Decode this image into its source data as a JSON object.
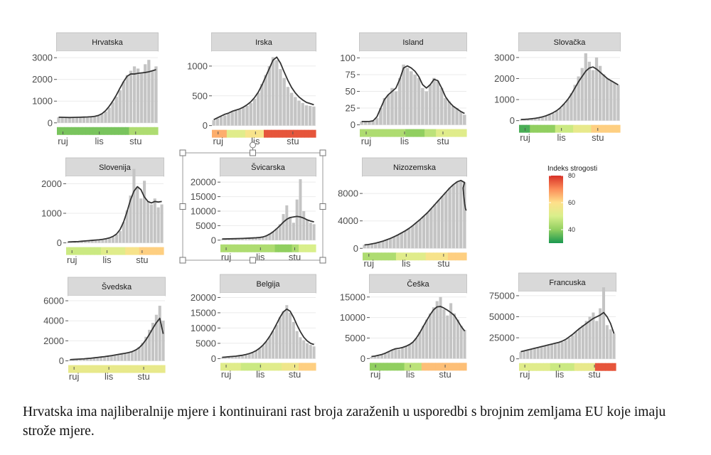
{
  "caption": "Hrvatska ima najliberalnije mjere i kontinuirani rast broja zaraženih u usporedbi s brojnim zemljama EU koje imaju strože mjere.",
  "colors": {
    "bar": "#c4c4c4",
    "line": "#333333",
    "strip": "#d9d9d9",
    "grid": "#ebebeb",
    "selection": "#9a9a9a"
  },
  "legend": {
    "title": "Indeks strogosti",
    "ticks": [
      40,
      60,
      80
    ],
    "range": [
      30,
      80
    ],
    "colors": [
      "#1a9850",
      "#91cf60",
      "#d9ef8b",
      "#fee08b",
      "#fc8d59",
      "#d73027"
    ]
  },
  "chart_data": [
    {
      "type": "bar",
      "title": "Hrvatska",
      "x": [
        "ruj",
        "lis",
        "stu"
      ],
      "yticks": [
        0,
        1000,
        2000,
        3000
      ],
      "ylim": [
        -400,
        3300
      ],
      "bars": [
        260,
        240,
        250,
        230,
        260,
        250,
        240,
        270,
        260,
        280,
        300,
        320,
        400,
        520,
        700,
        950,
        1200,
        1500,
        1900,
        2200,
        2400,
        2600,
        2500,
        2300,
        2700,
        2900,
        2400,
        2600
      ],
      "line": [
        260,
        255,
        250,
        245,
        250,
        255,
        260,
        265,
        270,
        280,
        300,
        340,
        420,
        560,
        760,
        1000,
        1280,
        1600,
        1900,
        2150,
        2250,
        2250,
        2280,
        2300,
        2320,
        2350,
        2400,
        2450
      ],
      "stringency": [
        38,
        38,
        38,
        38,
        38,
        38,
        38,
        38,
        38,
        38,
        38,
        38,
        38,
        38,
        38,
        38,
        38,
        38,
        38,
        38,
        44,
        44,
        44,
        44,
        44,
        44,
        44,
        44
      ]
    },
    {
      "type": "bar",
      "title": "Irska",
      "x": [
        "ruj",
        "lis",
        "stu"
      ],
      "yticks": [
        0,
        500,
        1000
      ],
      "ylim": [
        -100,
        1250
      ],
      "bars": [
        90,
        120,
        150,
        170,
        200,
        230,
        250,
        270,
        300,
        330,
        380,
        450,
        550,
        700,
        850,
        1000,
        1150,
        1100,
        950,
        800,
        650,
        550,
        480,
        420,
        380,
        340,
        330,
        320
      ],
      "line": [
        100,
        130,
        160,
        190,
        210,
        240,
        260,
        280,
        310,
        350,
        400,
        470,
        560,
        680,
        820,
        960,
        1100,
        1150,
        1050,
        900,
        760,
        640,
        550,
        480,
        430,
        390,
        370,
        350
      ],
      "stringency": [
        66,
        66,
        66,
        66,
        52,
        52,
        52,
        52,
        52,
        58,
        58,
        58,
        58,
        58,
        76,
        76,
        76,
        76,
        76,
        76,
        76,
        76,
        76,
        76,
        76,
        76,
        76,
        76
      ]
    },
    {
      "type": "bar",
      "title": "Island",
      "x": [
        "ruj",
        "lis",
        "stu"
      ],
      "yticks": [
        0,
        25,
        50,
        75,
        100
      ],
      "ylim": [
        -10,
        110
      ],
      "bars": [
        5,
        5,
        4,
        6,
        10,
        25,
        40,
        45,
        55,
        50,
        70,
        90,
        85,
        80,
        75,
        70,
        55,
        50,
        60,
        70,
        65,
        55,
        40,
        35,
        28,
        25,
        20,
        15
      ],
      "line": [
        5,
        5,
        5,
        6,
        12,
        25,
        38,
        45,
        50,
        55,
        68,
        85,
        88,
        85,
        80,
        72,
        60,
        55,
        60,
        68,
        66,
        55,
        42,
        34,
        28,
        24,
        20,
        17
      ],
      "stringency": [
        44,
        44,
        44,
        44,
        44,
        44,
        44,
        44,
        44,
        44,
        44,
        44,
        40,
        40,
        40,
        40,
        40,
        46,
        46,
        46,
        52,
        52,
        52,
        52,
        52,
        52,
        52,
        52
      ]
    },
    {
      "type": "bar",
      "title": "Slovačka",
      "x": [
        "ruj",
        "lis",
        "stu"
      ],
      "yticks": [
        0,
        1000,
        2000,
        3000
      ],
      "ylim": [
        -350,
        3300
      ],
      "bars": [
        40,
        50,
        60,
        80,
        100,
        130,
        170,
        220,
        280,
        350,
        450,
        600,
        800,
        1000,
        1300,
        1700,
        2100,
        2500,
        3200,
        2800,
        2400,
        3000,
        2600,
        2200,
        2000,
        1900,
        1800,
        1700
      ],
      "line": [
        50,
        60,
        70,
        90,
        110,
        140,
        180,
        230,
        300,
        380,
        480,
        620,
        800,
        1000,
        1250,
        1550,
        1850,
        2100,
        2350,
        2500,
        2550,
        2450,
        2300,
        2150,
        2000,
        1900,
        1800,
        1700
      ],
      "stringency": [
        34,
        34,
        34,
        40,
        40,
        40,
        40,
        40,
        40,
        40,
        48,
        48,
        48,
        48,
        48,
        54,
        54,
        54,
        54,
        54,
        62,
        62,
        62,
        62,
        62,
        62,
        62,
        62
      ]
    },
    {
      "type": "bar",
      "title": "Slovenija",
      "x": [
        "ruj",
        "lis",
        "stu"
      ],
      "yticks": [
        0,
        1000,
        2000
      ],
      "ylim": [
        -250,
        2250
      ],
      "bars": [
        20,
        25,
        30,
        40,
        50,
        60,
        70,
        80,
        90,
        100,
        110,
        130,
        150,
        200,
        280,
        400,
        700,
        1100,
        1600,
        2500,
        1900,
        1500,
        2100,
        1400,
        1300,
        1500,
        1200,
        1300
      ],
      "line": [
        30,
        35,
        40,
        45,
        55,
        65,
        75,
        85,
        95,
        105,
        120,
        140,
        170,
        220,
        300,
        450,
        700,
        1050,
        1450,
        1750,
        1900,
        1800,
        1550,
        1400,
        1350,
        1400,
        1380,
        1400
      ],
      "stringency": [
        48,
        48,
        48,
        48,
        48,
        48,
        48,
        48,
        48,
        48,
        52,
        52,
        52,
        52,
        52,
        52,
        52,
        58,
        58,
        58,
        58,
        62,
        62,
        62,
        62,
        62,
        62,
        62
      ]
    },
    {
      "type": "bar",
      "title": "Švicarska",
      "x": [
        "ruj",
        "lis",
        "stu"
      ],
      "yticks": [
        0,
        5000,
        10000,
        15000,
        20000
      ],
      "ylim": [
        -2500,
        22000
      ],
      "bars": [
        300,
        350,
        400,
        450,
        500,
        550,
        600,
        650,
        700,
        750,
        800,
        900,
        1200,
        1600,
        2200,
        3000,
        4000,
        5500,
        9000,
        12000,
        8000,
        6000,
        14000,
        21000,
        10000,
        7000,
        6000,
        5500
      ],
      "line": [
        400,
        420,
        450,
        480,
        520,
        560,
        600,
        650,
        700,
        760,
        820,
        920,
        1100,
        1500,
        2100,
        2900,
        3900,
        5000,
        6200,
        7200,
        7800,
        8000,
        8200,
        8000,
        7600,
        7000,
        6600,
        6300
      ],
      "stringency": [
        44,
        44,
        44,
        44,
        44,
        44,
        44,
        44,
        44,
        44,
        44,
        44,
        44,
        44,
        44,
        44,
        40,
        40,
        40,
        40,
        40,
        44,
        44,
        50,
        50,
        50,
        50,
        50
      ]
    },
    {
      "type": "area",
      "title": "Nizozemska",
      "x": [
        "ruj",
        "lis",
        "stu"
      ],
      "yticks": [
        0,
        4000,
        8000
      ],
      "ylim": [
        -800,
        10500
      ],
      "bars": [
        500,
        550,
        650,
        750,
        900,
        1050,
        1250,
        1450,
        1700,
        1950,
        2250,
        2550,
        2900,
        3300,
        3750,
        4200,
        4700,
        5200,
        5800,
        6400,
        7000,
        7600,
        8200,
        8800,
        9300,
        9700,
        9900,
        9600
      ],
      "line": [
        500,
        550,
        650,
        750,
        900,
        1050,
        1250,
        1450,
        1700,
        1950,
        2250,
        2550,
        2900,
        3300,
        3750,
        4200,
        4700,
        5200,
        5800,
        6400,
        7000,
        7600,
        8200,
        8800,
        9300,
        9700,
        9900,
        9600
      ],
      "line_tail": [
        8800,
        7500,
        6500,
        5800,
        5500
      ],
      "stringency": [
        44,
        44,
        44,
        44,
        44,
        44,
        44,
        44,
        44,
        52,
        52,
        52,
        52,
        52,
        52,
        52,
        52,
        58,
        58,
        58,
        58,
        58,
        58,
        62,
        62,
        62,
        62,
        62
      ]
    },
    {
      "type": "bar",
      "title": "Švedska",
      "x": [
        "ruj",
        "lis",
        "stu"
      ],
      "yticks": [
        0,
        2000,
        4000,
        6000
      ],
      "ylim": [
        -600,
        6500
      ],
      "bars": [
        100,
        120,
        150,
        180,
        200,
        220,
        250,
        300,
        350,
        400,
        450,
        500,
        550,
        600,
        650,
        700,
        750,
        800,
        900,
        1100,
        1400,
        1800,
        2400,
        3100,
        3800,
        4600,
        5500,
        4000
      ],
      "line": [
        120,
        140,
        160,
        180,
        200,
        230,
        260,
        300,
        340,
        380,
        420,
        470,
        520,
        580,
        640,
        700,
        760,
        830,
        920,
        1080,
        1300,
        1650,
        2100,
        2650,
        3250,
        3800,
        4250,
        2700
      ],
      "stringency": [
        54,
        54,
        54,
        54,
        54,
        54,
        54,
        54,
        54,
        54,
        54,
        54,
        54,
        54,
        54,
        54,
        54,
        54,
        54,
        54,
        54,
        54,
        54,
        54,
        54,
        54,
        54,
        54
      ]
    },
    {
      "type": "bar",
      "title": "Belgija",
      "x": [
        "ruj",
        "lis",
        "stu"
      ],
      "yticks": [
        0,
        5000,
        10000,
        15000,
        20000
      ],
      "ylim": [
        -2000,
        21500
      ],
      "bars": [
        300,
        400,
        500,
        600,
        700,
        850,
        1000,
        1200,
        1500,
        1900,
        2500,
        3300,
        4300,
        5600,
        7200,
        9000,
        11000,
        13500,
        15500,
        17500,
        15000,
        12000,
        9000,
        7000,
        6000,
        5000,
        4500,
        4000
      ],
      "line": [
        400,
        500,
        600,
        700,
        800,
        950,
        1100,
        1350,
        1650,
        2050,
        2600,
        3400,
        4400,
        5700,
        7300,
        9200,
        11300,
        13500,
        15300,
        16200,
        15500,
        13500,
        11000,
        8800,
        7000,
        5800,
        5000,
        4600
      ],
      "stringency": [
        52,
        52,
        52,
        52,
        52,
        52,
        48,
        48,
        48,
        48,
        48,
        48,
        52,
        52,
        52,
        52,
        52,
        52,
        56,
        56,
        56,
        56,
        56,
        62,
        62,
        62,
        62,
        62
      ]
    },
    {
      "type": "bar",
      "title": "Češka",
      "x": [
        "ruj",
        "lis",
        "stu"
      ],
      "yticks": [
        0,
        5000,
        10000,
        15000
      ],
      "ylim": [
        -1500,
        16000
      ],
      "bars": [
        400,
        500,
        700,
        900,
        1200,
        1600,
        2000,
        2500,
        2200,
        2600,
        3000,
        3500,
        4000,
        5000,
        6500,
        8000,
        9500,
        11000,
        12500,
        14000,
        15000,
        12000,
        10500,
        13500,
        11000,
        9500,
        8000,
        7000
      ],
      "line": [
        500,
        600,
        800,
        1000,
        1300,
        1700,
        2100,
        2400,
        2500,
        2700,
        3000,
        3400,
        4000,
        5000,
        6300,
        7800,
        9300,
        10700,
        11900,
        12600,
        12700,
        12300,
        11800,
        11200,
        10500,
        9200,
        7800,
        6700
      ],
      "stringency": [
        40,
        40,
        40,
        40,
        40,
        40,
        40,
        40,
        40,
        40,
        46,
        46,
        46,
        46,
        46,
        64,
        64,
        64,
        64,
        64,
        64,
        64,
        64,
        64,
        64,
        64,
        64,
        64
      ]
    },
    {
      "type": "bar",
      "title": "Francuska",
      "x": [
        "ruj",
        "lis",
        "stu"
      ],
      "yticks": [
        0,
        25000,
        50000,
        75000
      ],
      "ylim": [
        -7000,
        80000
      ],
      "bars": [
        8000,
        9000,
        10000,
        11000,
        12000,
        13000,
        14000,
        15000,
        16000,
        17000,
        18000,
        19000,
        20000,
        22000,
        25000,
        28000,
        32000,
        36000,
        40000,
        45000,
        50000,
        55000,
        45000,
        60000,
        85000,
        40000,
        35000,
        30000
      ],
      "line": [
        8500,
        9500,
        10500,
        11500,
        12500,
        13500,
        14500,
        15500,
        16500,
        17500,
        18500,
        19500,
        21000,
        23000,
        26000,
        29000,
        32500,
        36000,
        39000,
        42000,
        45000,
        48000,
        50000,
        52000,
        55000,
        50000,
        42000,
        30000
      ],
      "stringency": [
        52,
        52,
        52,
        52,
        52,
        52,
        52,
        52,
        52,
        48,
        48,
        48,
        48,
        48,
        48,
        48,
        54,
        54,
        54,
        54,
        54,
        54,
        76,
        76,
        76,
        76,
        76,
        76
      ]
    }
  ]
}
